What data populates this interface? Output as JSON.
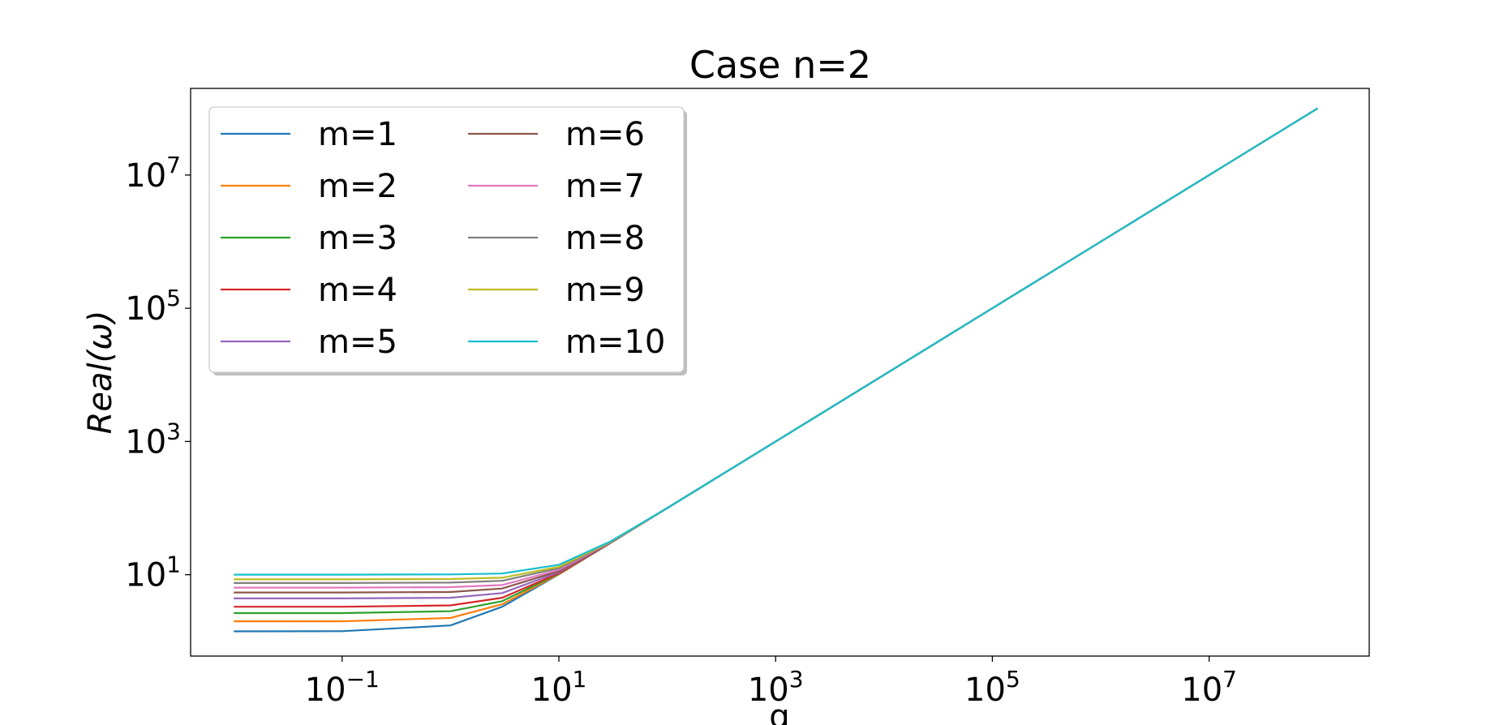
{
  "chart_data": {
    "type": "line",
    "title": "Case n=2",
    "xlabel": "q",
    "ylabel": "Real(ω)",
    "xscale": "log",
    "yscale": "log",
    "xlim": [
      0.004,
      300000000
    ],
    "ylim": [
      0.6,
      200000000
    ],
    "grid": false,
    "legend": {
      "location": "upper-left",
      "columns": 2
    },
    "xticks": [
      {
        "value": 0.1,
        "base": "10",
        "exp": "−1"
      },
      {
        "value": 10,
        "base": "10",
        "exp": "1"
      },
      {
        "value": 1000,
        "base": "10",
        "exp": "3"
      },
      {
        "value": 100000,
        "base": "10",
        "exp": "5"
      },
      {
        "value": 10000000,
        "base": "10",
        "exp": "7"
      }
    ],
    "yticks": [
      {
        "value": 10,
        "base": "10",
        "exp": "1"
      },
      {
        "value": 1000,
        "base": "10",
        "exp": "3"
      },
      {
        "value": 100000,
        "base": "10",
        "exp": "5"
      },
      {
        "value": 10000000,
        "base": "10",
        "exp": "7"
      }
    ],
    "x": [
      0.01,
      0.1,
      1,
      3,
      10,
      30,
      100,
      1000,
      10000,
      100000,
      1000000,
      10000000,
      100000000
    ],
    "series": [
      {
        "name": "m=1",
        "color": "#1f77b4",
        "values": [
          1.41,
          1.42,
          1.73,
          3.3,
          10.1,
          30.0,
          100,
          1000,
          10000,
          100000,
          1000000,
          10000000,
          100000000
        ]
      },
      {
        "name": "m=2",
        "color": "#ff7f0e",
        "values": [
          2.0,
          2.0,
          2.24,
          3.6,
          10.2,
          30.1,
          100,
          1000,
          10000,
          100000,
          1000000,
          10000000,
          100000000
        ]
      },
      {
        "name": "m=3",
        "color": "#2ca02c",
        "values": [
          2.65,
          2.65,
          2.83,
          4.0,
          10.4,
          30.1,
          100,
          1000,
          10000,
          100000,
          1000000,
          10000000,
          100000000
        ]
      },
      {
        "name": "m=4",
        "color": "#d62728",
        "values": [
          3.3,
          3.3,
          3.46,
          4.5,
          10.5,
          30.2,
          100,
          1000,
          10000,
          100000,
          1000000,
          10000000,
          100000000
        ]
      },
      {
        "name": "m=5",
        "color": "#9467bd",
        "values": [
          4.4,
          4.4,
          4.5,
          5.3,
          10.9,
          30.3,
          100,
          1000,
          10000,
          100000,
          1000000,
          10000000,
          100000000
        ]
      },
      {
        "name": "m=6",
        "color": "#8c564b",
        "values": [
          5.4,
          5.4,
          5.5,
          6.2,
          11.3,
          30.5,
          100,
          1000,
          10000,
          100000,
          1000000,
          10000000,
          100000000
        ]
      },
      {
        "name": "m=7",
        "color": "#e377c2",
        "values": [
          6.4,
          6.4,
          6.5,
          7.0,
          11.8,
          30.7,
          100,
          1000,
          10000,
          100000,
          1000000,
          10000000,
          100000000
        ]
      },
      {
        "name": "m=8",
        "color": "#7f7f7f",
        "values": [
          7.5,
          7.5,
          7.6,
          8.1,
          12.5,
          30.9,
          100,
          1000,
          10000,
          100000,
          1000000,
          10000000,
          100000000
        ]
      },
      {
        "name": "m=9",
        "color": "#bcbd22",
        "values": [
          8.5,
          8.5,
          8.6,
          9.0,
          13.1,
          31.2,
          100,
          1000,
          10000,
          100000,
          1000000,
          10000000,
          100000000
        ]
      },
      {
        "name": "m=10",
        "color": "#17becf",
        "values": [
          10.0,
          10.0,
          10.1,
          10.4,
          14.1,
          31.6,
          100,
          1000,
          10000,
          100000,
          1000000,
          10000000,
          100000000
        ]
      }
    ]
  }
}
